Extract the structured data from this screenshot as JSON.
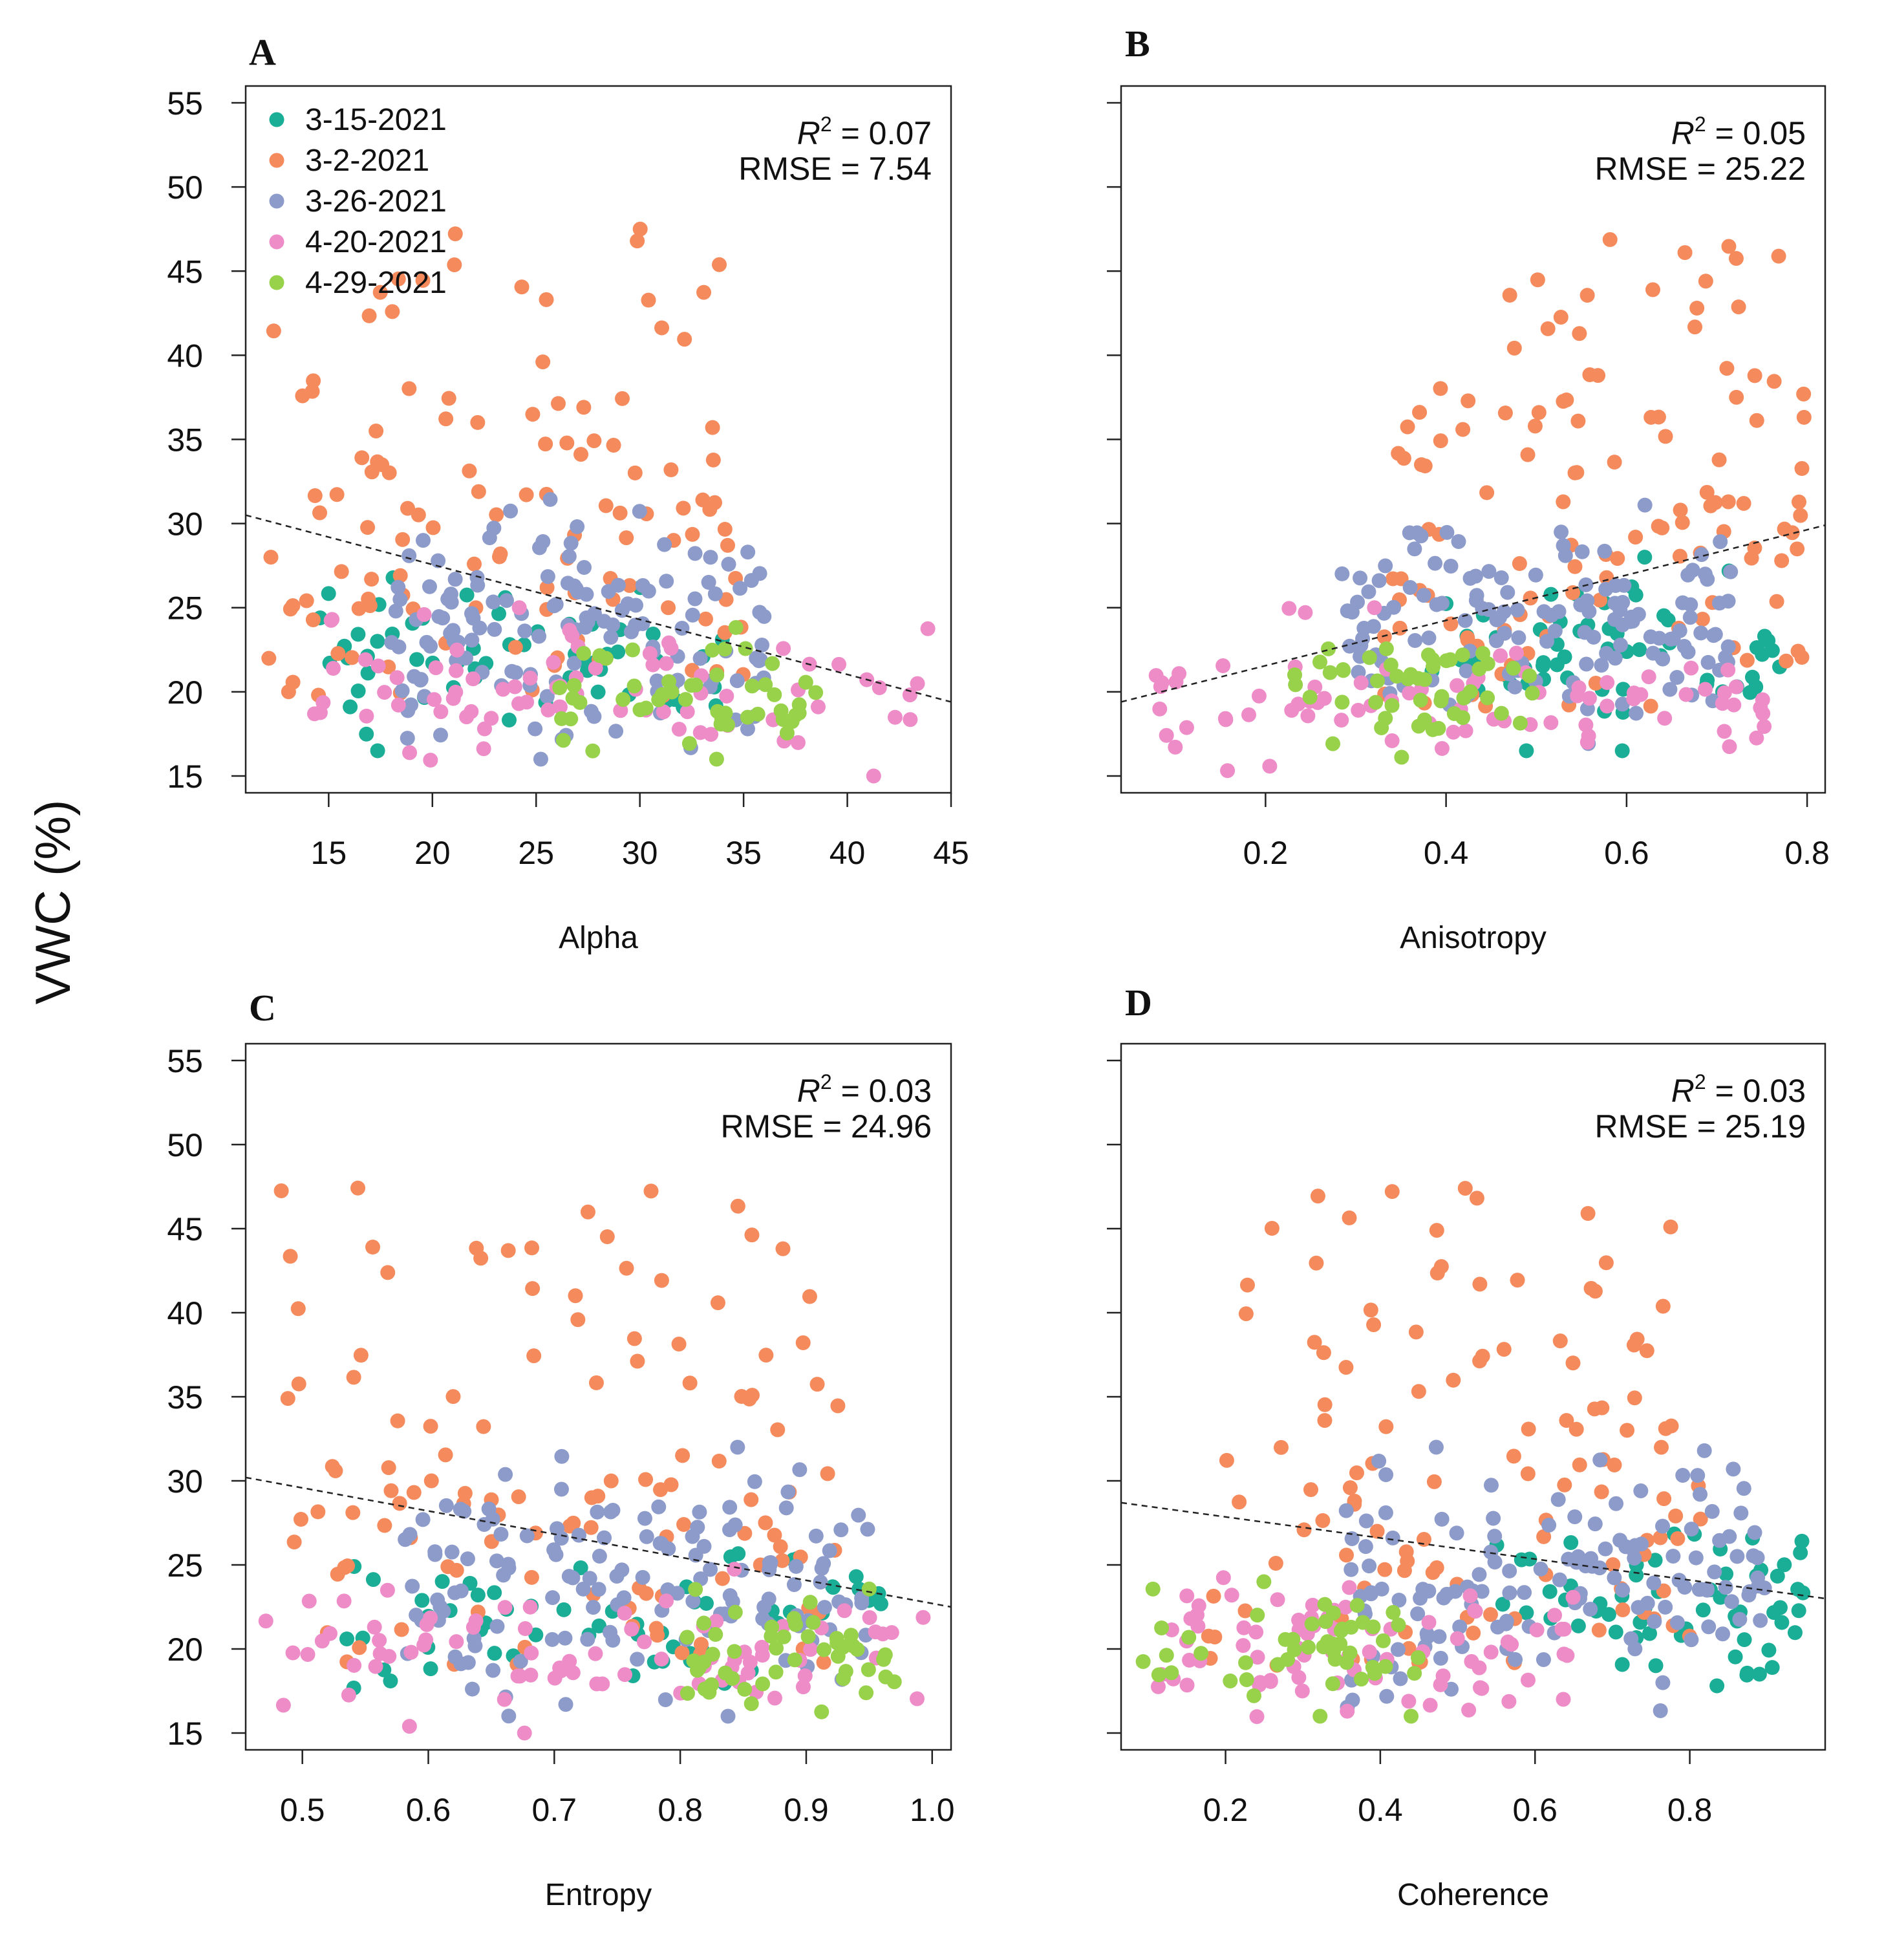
{
  "figure": {
    "ylabel": "VWC (%)",
    "legend": [
      {
        "label": "3-15-2021",
        "color": "#1aae96"
      },
      {
        "label": "3-2-2021",
        "color": "#f58a5c"
      },
      {
        "label": "3-26-2021",
        "color": "#8d9bcb"
      },
      {
        "label": "4-20-2021",
        "color": "#ee8cc8"
      },
      {
        "label": "4-29-2021",
        "color": "#98d14a"
      }
    ]
  },
  "chart_data": [
    {
      "type": "scatter",
      "panel": "A",
      "xlabel": "Alpha",
      "ylabel": "VWC (%)",
      "xlim": [
        11,
        45
      ],
      "ylim": [
        14,
        56
      ],
      "xticks": [
        15,
        20,
        25,
        30,
        35,
        40,
        45
      ],
      "xtick_labels": [
        "15",
        "20",
        "25",
        "30",
        "35",
        "40",
        "45"
      ],
      "yticks": [
        15,
        20,
        25,
        30,
        35,
        40,
        45,
        50,
        55
      ],
      "show_ytick_labels": true,
      "r2_label": "R",
      "r2_value": " = 0.07",
      "rmse_text": "RMSE = 7.54",
      "trend": [
        [
          11,
          30.5
        ],
        [
          45,
          19.4
        ]
      ],
      "spread": 3.4,
      "groups": [
        {
          "name": "3-15-2021",
          "n": 60,
          "x": [
            14.5,
            34
          ],
          "y": [
            16.5,
            28
          ]
        },
        {
          "name": "3-2-2021",
          "n": 120,
          "x": [
            12,
            35
          ],
          "y": [
            16.5,
            47.5
          ]
        },
        {
          "name": "3-26-2021",
          "n": 140,
          "x": [
            18,
            36
          ],
          "y": [
            16,
            32
          ]
        },
        {
          "name": "4-20-2021",
          "n": 80,
          "x": [
            14,
            44
          ],
          "y": [
            15,
            25
          ]
        },
        {
          "name": "4-29-2021",
          "n": 50,
          "x": [
            26,
            39
          ],
          "y": [
            16,
            24
          ]
        }
      ],
      "show_legend": true
    },
    {
      "type": "scatter",
      "panel": "B",
      "xlabel": "Anisotropy",
      "ylabel": "VWC (%)",
      "xlim": [
        0.04,
        0.82
      ],
      "ylim": [
        14,
        56
      ],
      "xticks": [
        0.2,
        0.4,
        0.6,
        0.8
      ],
      "xtick_labels": [
        "0.2",
        "0.4",
        "0.6",
        "0.8"
      ],
      "yticks": [
        15,
        20,
        25,
        30,
        35,
        40,
        45,
        50,
        55
      ],
      "show_ytick_labels": false,
      "r2_label": "R",
      "r2_value": " = 0.05",
      "rmse_text": "RMSE = 25.22",
      "trend": [
        [
          0.04,
          19.4
        ],
        [
          0.82,
          29.9
        ]
      ],
      "spread": 3.4,
      "groups": [
        {
          "name": "3-15-2021",
          "n": 60,
          "x": [
            0.38,
            0.77
          ],
          "y": [
            16.5,
            28
          ]
        },
        {
          "name": "3-2-2021",
          "n": 120,
          "x": [
            0.33,
            0.8
          ],
          "y": [
            16.5,
            47.5
          ]
        },
        {
          "name": "3-26-2021",
          "n": 140,
          "x": [
            0.28,
            0.73
          ],
          "y": [
            16,
            32
          ]
        },
        {
          "name": "4-20-2021",
          "n": 80,
          "x": [
            0.06,
            0.79
          ],
          "y": [
            15,
            25
          ]
        },
        {
          "name": "4-29-2021",
          "n": 50,
          "x": [
            0.23,
            0.5
          ],
          "y": [
            16,
            24
          ]
        }
      ],
      "show_legend": false
    },
    {
      "type": "scatter",
      "panel": "C",
      "xlabel": "Entropy",
      "ylabel": "VWC (%)",
      "xlim": [
        0.455,
        1.015
      ],
      "ylim": [
        14,
        56
      ],
      "xticks": [
        0.5,
        0.6,
        0.7,
        0.8,
        0.9,
        1.0
      ],
      "xtick_labels": [
        "0.5",
        "0.6",
        "0.7",
        "0.8",
        "0.9",
        "1.0"
      ],
      "yticks": [
        15,
        20,
        25,
        30,
        35,
        40,
        45,
        50,
        55
      ],
      "show_ytick_labels": true,
      "r2_label": "R",
      "r2_value": " = 0.03",
      "rmse_text": "RMSE = 24.96",
      "trend": [
        [
          0.455,
          30.2
        ],
        [
          1.015,
          22.5
        ]
      ],
      "spread": 3.4,
      "groups": [
        {
          "name": "3-15-2021",
          "n": 60,
          "x": [
            0.52,
            0.96
          ],
          "y": [
            16.5,
            28
          ]
        },
        {
          "name": "3-2-2021",
          "n": 120,
          "x": [
            0.47,
            0.93
          ],
          "y": [
            16.5,
            47.5
          ]
        },
        {
          "name": "3-26-2021",
          "n": 140,
          "x": [
            0.58,
            0.95
          ],
          "y": [
            16,
            32
          ]
        },
        {
          "name": "4-20-2021",
          "n": 80,
          "x": [
            0.47,
            1.0
          ],
          "y": [
            15,
            25
          ]
        },
        {
          "name": "4-29-2021",
          "n": 50,
          "x": [
            0.8,
            0.97
          ],
          "y": [
            16,
            24
          ]
        }
      ],
      "show_legend": false
    },
    {
      "type": "scatter",
      "panel": "D",
      "xlabel": "Coherence",
      "ylabel": "VWC (%)",
      "xlim": [
        0.065,
        0.975
      ],
      "ylim": [
        14,
        56
      ],
      "xticks": [
        0.2,
        0.4,
        0.6,
        0.8
      ],
      "xtick_labels": [
        "0.2",
        "0.4",
        "0.6",
        "0.8"
      ],
      "yticks": [
        15,
        20,
        25,
        30,
        35,
        40,
        45,
        50,
        55
      ],
      "show_ytick_labels": false,
      "r2_label": "R",
      "r2_value": " = 0.03",
      "rmse_text": "RMSE = 25.19",
      "trend": [
        [
          0.065,
          28.7
        ],
        [
          0.975,
          23
        ]
      ],
      "spread": 3.4,
      "groups": [
        {
          "name": "3-15-2021",
          "n": 60,
          "x": [
            0.55,
            0.95
          ],
          "y": [
            16.5,
            28
          ]
        },
        {
          "name": "3-2-2021",
          "n": 120,
          "x": [
            0.17,
            0.82
          ],
          "y": [
            16.5,
            47.5
          ]
        },
        {
          "name": "3-26-2021",
          "n": 140,
          "x": [
            0.35,
            0.9
          ],
          "y": [
            16,
            32
          ]
        },
        {
          "name": "4-20-2021",
          "n": 80,
          "x": [
            0.1,
            0.65
          ],
          "y": [
            15,
            25
          ]
        },
        {
          "name": "4-29-2021",
          "n": 50,
          "x": [
            0.09,
            0.45
          ],
          "y": [
            16,
            24
          ]
        }
      ],
      "show_legend": false
    }
  ]
}
